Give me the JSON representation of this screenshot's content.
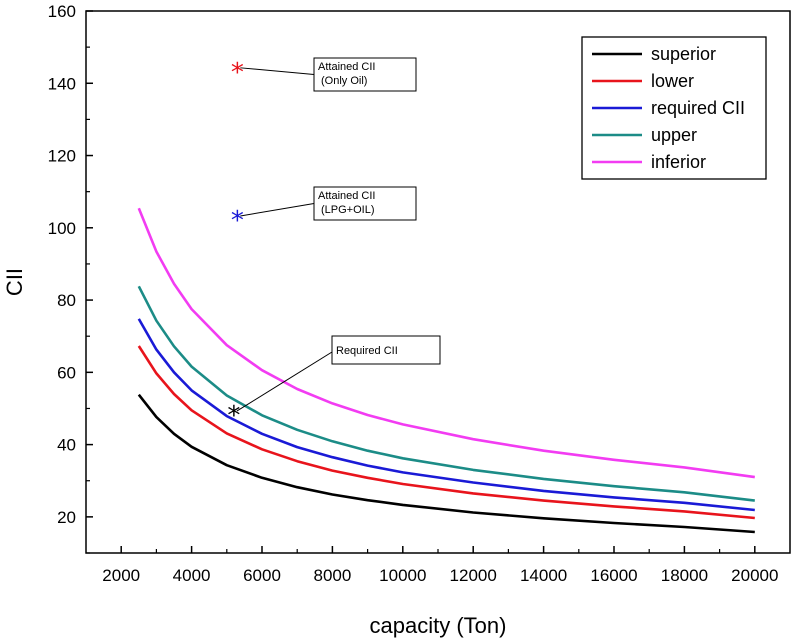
{
  "chart_data": {
    "type": "line",
    "title": "",
    "xlabel": "capacity (Ton)",
    "ylabel": "CII",
    "xlim": [
      1000,
      21000
    ],
    "ylim": [
      10,
      160
    ],
    "xticks": [
      2000,
      4000,
      6000,
      8000,
      10000,
      12000,
      14000,
      16000,
      18000,
      20000
    ],
    "yticks": [
      20,
      40,
      60,
      80,
      100,
      120,
      140,
      160
    ],
    "x": [
      2500,
      3000,
      3500,
      4000,
      5000,
      6000,
      7000,
      8000,
      9000,
      10000,
      12000,
      14000,
      16000,
      18000,
      20000
    ],
    "series": [
      {
        "name": "superior",
        "color": "#000000",
        "values": [
          53.8,
          47.6,
          43.0,
          39.4,
          34.3,
          30.8,
          28.2,
          26.2,
          24.6,
          23.3,
          21.2,
          19.6,
          18.3,
          17.2,
          15.8
        ]
      },
      {
        "name": "lower",
        "color": "#e8141c",
        "values": [
          67.3,
          59.7,
          54.0,
          49.5,
          43.1,
          38.7,
          35.4,
          32.8,
          30.8,
          29.1,
          26.5,
          24.5,
          22.9,
          21.5,
          19.7
        ]
      },
      {
        "name": "required CII",
        "color": "#1a1ad6",
        "values": [
          74.8,
          66.3,
          60.0,
          55.0,
          47.9,
          43.0,
          39.3,
          36.5,
          34.2,
          32.3,
          29.5,
          27.2,
          25.4,
          23.9,
          21.9
        ]
      },
      {
        "name": "upper",
        "color": "#1c8c87",
        "values": [
          83.8,
          74.3,
          67.2,
          61.6,
          53.6,
          48.1,
          44.1,
          40.9,
          38.3,
          36.2,
          33.0,
          30.5,
          28.5,
          26.8,
          24.5
        ]
      },
      {
        "name": "inferior",
        "color": "#f23cf2",
        "values": [
          105.4,
          93.4,
          84.5,
          77.5,
          67.5,
          60.6,
          55.4,
          51.4,
          48.2,
          45.6,
          41.5,
          38.3,
          35.8,
          33.7,
          31.0
        ]
      }
    ],
    "markers": [
      {
        "x": 5300,
        "y": 144,
        "color": "#e8141c",
        "glyph": "*",
        "label_lines": [
          "Attained CII",
          "(Only Oil)"
        ]
      },
      {
        "x": 5300,
        "y": 103,
        "color": "#1a1ad6",
        "glyph": "*",
        "label_lines": [
          "Attained CII",
          "(LPG+OIL)"
        ]
      },
      {
        "x": 5200,
        "y": 49,
        "color": "#000000",
        "glyph": "*",
        "label_lines": [
          "Required CII"
        ]
      }
    ],
    "legend_position": "top-right",
    "grid": false
  }
}
